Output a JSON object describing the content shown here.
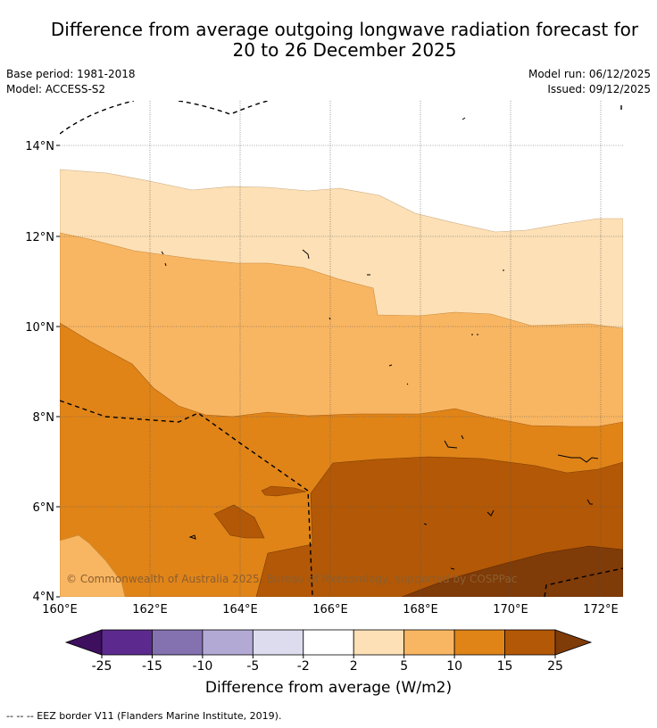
{
  "title_line1": "Difference from average outgoing longwave radiation forecast for",
  "title_line2": "20 to 26 December 2025",
  "base_period": "Base period: 1981-2018",
  "model": "Model: ACCESS-S2",
  "model_run": "Model run: 06/12/2025",
  "issued": "Issued: 09/12/2025",
  "copyright": "© Commonwealth of Australia 2025, Bureau of Meteorology, supported by COSPPac",
  "lat_labels": [
    "14°N",
    "12°N",
    "10°N",
    "8°N",
    "6°N",
    "4°N"
  ],
  "lon_labels": [
    "160°E",
    "162°E",
    "164°E",
    "166°E",
    "168°E",
    "170°E",
    "172°E"
  ],
  "colorbar": {
    "title": "Difference from average (W/m2)",
    "ticks": [
      "-25",
      "-15",
      "-10",
      "-5",
      "-2",
      "2",
      "5",
      "10",
      "15",
      "25"
    ],
    "colors": [
      "#3d0f5e",
      "#5c2a8e",
      "#8471b0",
      "#b2a9d4",
      "#dcdcee",
      "#ffffff",
      "#fde0b5",
      "#f9b662",
      "#e08418",
      "#b35806",
      "#7f3b08"
    ]
  },
  "legend_footnote": "-- -- -- EEZ border V11 (Flanders Marine Institute, 2019)."
}
